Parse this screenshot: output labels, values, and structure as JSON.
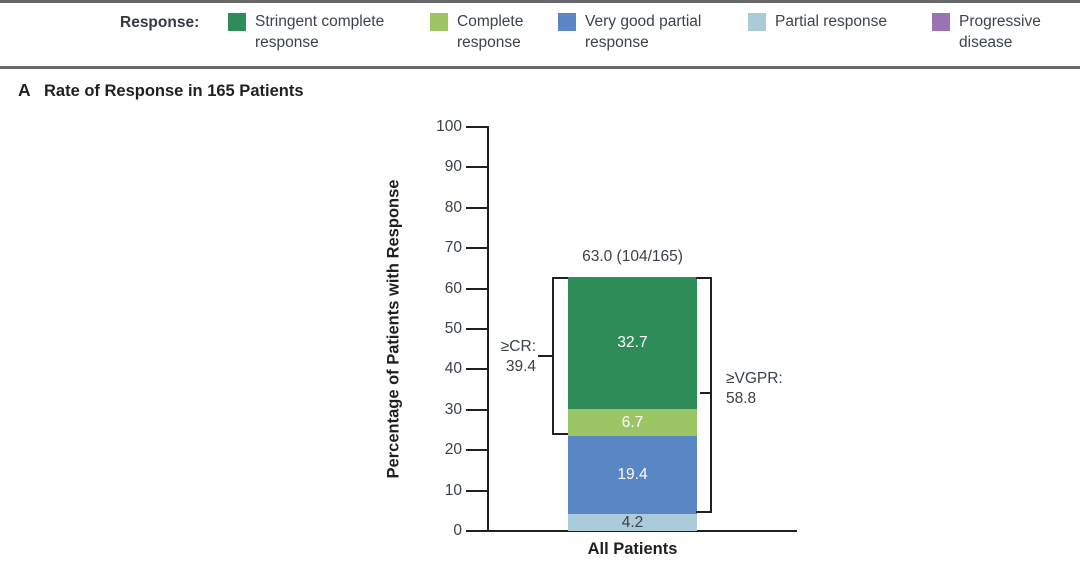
{
  "legend": {
    "title": "Response:",
    "items": [
      {
        "label": "Stringent complete\nresponse",
        "color": "#2d8c58"
      },
      {
        "label": "Complete\nresponse",
        "color": "#9cc566"
      },
      {
        "label": "Very good partial\nresponse",
        "color": "#5a87c4"
      },
      {
        "label": "Partial response",
        "color": "#abcbd9"
      },
      {
        "label": "Progressive\ndisease",
        "color": "#9973b3"
      }
    ]
  },
  "panel": {
    "label": "A",
    "title": "Rate of Response in 165 Patients"
  },
  "annotations": {
    "total": "63.0 (104/165)",
    "cr_bracket": "≥CR:\n39.4",
    "vgpr_bracket": "≥VGPR:\n58.8"
  },
  "chart_data": {
    "type": "bar",
    "stacked": true,
    "title": "Rate of Response in 165 Patients",
    "panel_label": "A",
    "categories": [
      "All Patients"
    ],
    "series": [
      {
        "key": "partial-response",
        "name": "Partial response",
        "values": [
          4.2
        ],
        "color": "#abcbd9",
        "label_color": "#3a4149"
      },
      {
        "key": "very-good-partial-response",
        "name": "Very good partial response",
        "values": [
          19.4
        ],
        "color": "#5a87c4",
        "label_color": "#ffffff"
      },
      {
        "key": "complete-response",
        "name": "Complete response",
        "values": [
          6.7
        ],
        "color": "#9cc566",
        "label_color": "#ffffff"
      },
      {
        "key": "stringent-complete-response",
        "name": "Stringent complete response",
        "values": [
          32.7
        ],
        "color": "#2d8c58",
        "label_color": "#ffffff"
      }
    ],
    "stack_order": "bottom-to-top",
    "total_label": "63.0 (104/165)",
    "bracket_annotations": [
      {
        "label": "≥CR: 39.4",
        "span": [
          23.6,
          63.0
        ],
        "side": "left"
      },
      {
        "label": "≥VGPR: 58.8",
        "span": [
          4.2,
          63.0
        ],
        "side": "right"
      }
    ],
    "xlabel": "",
    "ylabel": "Percentage of Patients with Response",
    "ylim": [
      0,
      100
    ],
    "yticks": [
      0,
      10,
      20,
      30,
      40,
      50,
      60,
      70,
      80,
      90,
      100
    ],
    "grid": false,
    "legend_position": "top"
  }
}
